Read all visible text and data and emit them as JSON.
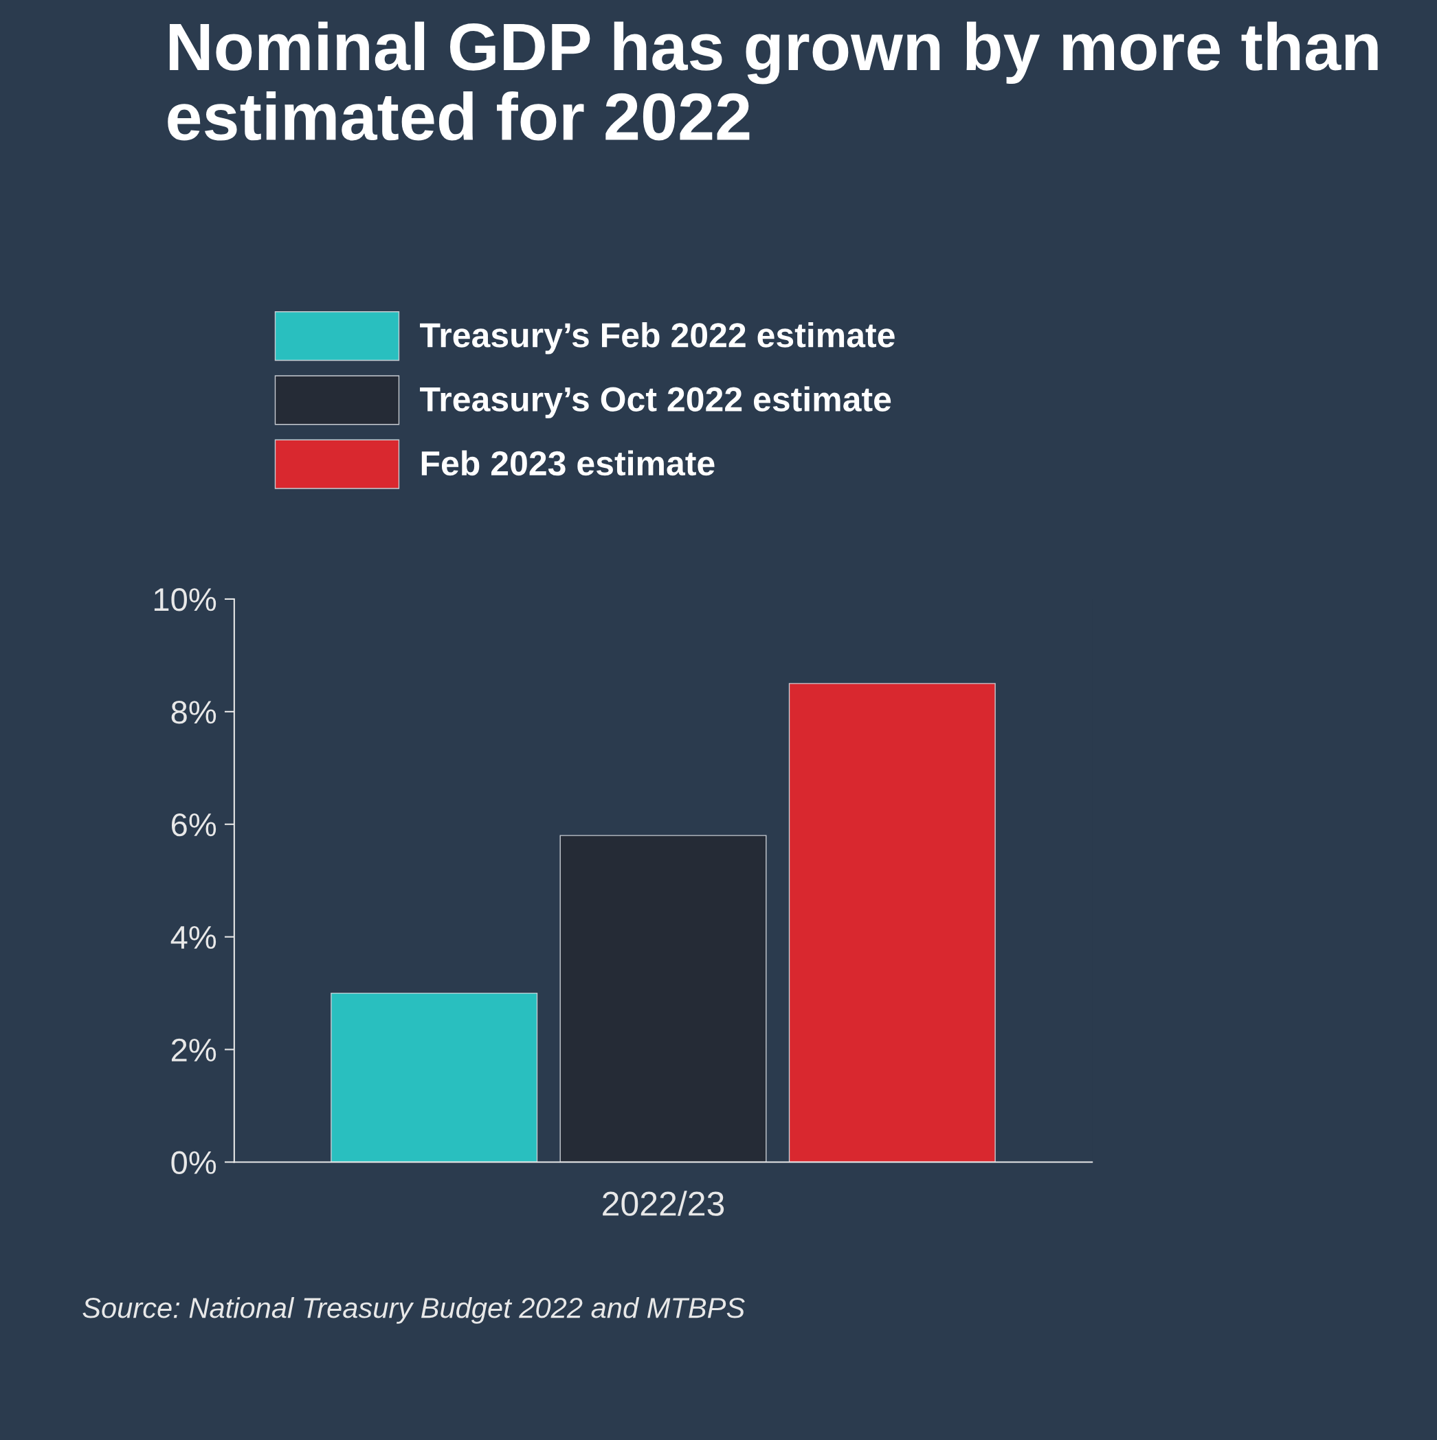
{
  "chart_data": {
    "type": "bar",
    "title": "Nominal GDP has grown by more than estimated for 2022",
    "categories": [
      "2022/23"
    ],
    "series": [
      {
        "name": "Treasury’s Feb 2022 estimate",
        "color": "#29bfbf",
        "values": [
          3.0
        ]
      },
      {
        "name": "Treasury’s Oct 2022 estimate",
        "color": "#252b36",
        "values": [
          5.8
        ]
      },
      {
        "name": "Feb 2023 estimate",
        "color": "#d9282f",
        "values": [
          8.5
        ]
      }
    ],
    "ylim": [
      0,
      10
    ],
    "yticks": [
      {
        "value": 0,
        "label": "0%"
      },
      {
        "value": 2,
        "label": "2%"
      },
      {
        "value": 4,
        "label": "4%"
      },
      {
        "value": 6,
        "label": "6%"
      },
      {
        "value": 8,
        "label": "8%"
      },
      {
        "value": 10,
        "label": "10%"
      }
    ],
    "grid": false,
    "legend": "top",
    "annotations": [
      "Source: National Treasury Budget 2022 and MTBPS"
    ]
  }
}
